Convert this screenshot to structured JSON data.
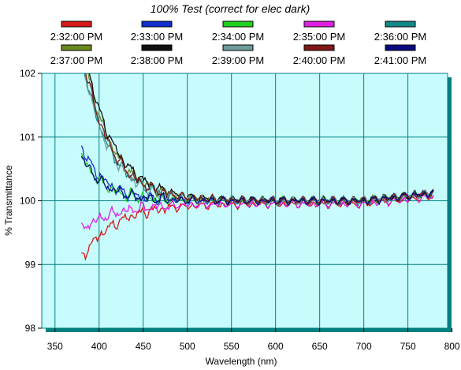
{
  "chart_data": {
    "type": "line",
    "title": "100% Test (correct for elec dark)",
    "xlabel": "Wavelength (nm)",
    "ylabel": "% Transmittance",
    "xlim": [
      335,
      795
    ],
    "ylim": [
      98,
      102
    ],
    "xticks": [
      "350",
      "400",
      "450",
      "500",
      "550",
      "600",
      "650",
      "700",
      "750",
      "800"
    ],
    "yticks": [
      "98",
      "99",
      "100",
      "101",
      "102"
    ],
    "grid": true,
    "legend_position": "top",
    "plot_background": "#c8fcfc",
    "grid_color": "#008080",
    "series": [
      {
        "name": "2:32:00 PM",
        "color": "#d81818",
        "start": 99.1,
        "low": true,
        "amp": 1.0
      },
      {
        "name": "2:33:00 PM",
        "color": "#1030d0",
        "start": 100.85,
        "low": false,
        "amp": 0.6
      },
      {
        "name": "2:34:00 PM",
        "color": "#20d020",
        "start": 100.7,
        "low": false,
        "amp": 0.45
      },
      {
        "name": "2:35:00 PM",
        "color": "#e020e0",
        "start": 99.55,
        "low": true,
        "amp": 0.75
      },
      {
        "name": "2:36:00 PM",
        "color": "#108888",
        "start": 102.3,
        "low": false,
        "amp": 1.1
      },
      {
        "name": "2:37:00 PM",
        "color": "#6a8a20",
        "start": 102.5,
        "low": false,
        "amp": 1.3
      },
      {
        "name": "2:38:00 PM",
        "color": "#101010",
        "start": 102.6,
        "low": false,
        "amp": 1.45
      },
      {
        "name": "2:39:00 PM",
        "color": "#6f9c9c",
        "start": 102.3,
        "low": false,
        "amp": 1.05
      },
      {
        "name": "2:40:00 PM",
        "color": "#801818",
        "start": 102.4,
        "low": false,
        "amp": 1.2
      },
      {
        "name": "2:41:00 PM",
        "color": "#0a0a80",
        "start": 100.7,
        "low": false,
        "amp": 0.5
      }
    ]
  }
}
